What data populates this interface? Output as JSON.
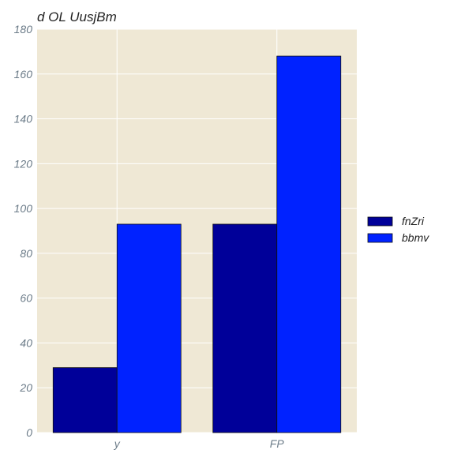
{
  "chart_data": {
    "type": "bar",
    "title": "d OL UusjBm",
    "xlabel": "",
    "ylabel": "",
    "categories": [
      "y",
      "FP"
    ],
    "series": [
      {
        "name": "fnZri",
        "values": [
          29,
          93
        ],
        "color": "#000099"
      },
      {
        "name": "bbmv",
        "values": [
          93,
          168
        ],
        "color": "#0022ff"
      }
    ],
    "ylim": [
      0,
      180
    ],
    "yticks": [
      0,
      20,
      40,
      60,
      80,
      100,
      120,
      140,
      160,
      180
    ],
    "grid": true,
    "legend": "right",
    "colors": {
      "plot_background": "#efe8d5",
      "grid": "#ffffff",
      "tick_label": "#6b7b88"
    }
  }
}
